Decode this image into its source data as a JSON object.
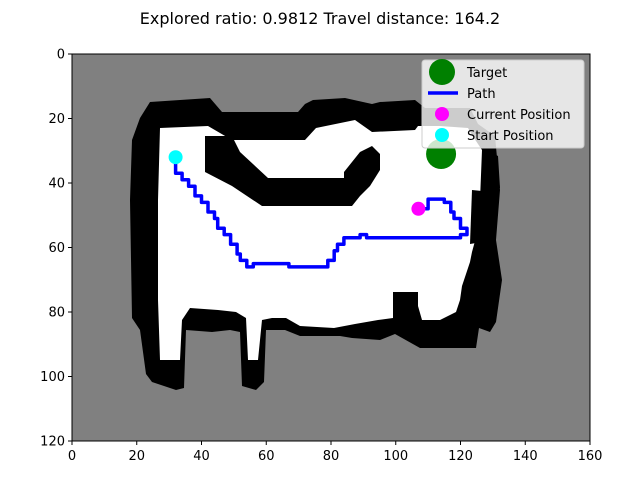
{
  "chart_data": {
    "type": "map",
    "title": "Explored ratio: 0.9812  Travel distance: 164.2",
    "xlim": [
      0,
      160
    ],
    "ylim": [
      120,
      0
    ],
    "y_inverted": true,
    "x_ticks": [
      0,
      20,
      40,
      60,
      80,
      100,
      120,
      140,
      160
    ],
    "y_ticks": [
      0,
      20,
      40,
      60,
      80,
      100,
      120
    ],
    "grid": false,
    "legend_position": "top-right",
    "legend": [
      {
        "label": "Target",
        "marker": "circle",
        "color": "#008000"
      },
      {
        "label": "Path",
        "marker": "line",
        "color": "#0000ff"
      },
      {
        "label": "Current Position",
        "marker": "circle",
        "color": "#ff00ff"
      },
      {
        "label": "Start Position",
        "marker": "circle",
        "color": "#00ffff"
      }
    ],
    "colors": {
      "unknown": "#808080",
      "obstacle": "#000000",
      "free": "#ffffff"
    },
    "target": {
      "x": 114,
      "y": 31
    },
    "current_position": {
      "x": 107,
      "y": 48
    },
    "start_position": {
      "x": 32,
      "y": 32
    },
    "path": [
      [
        32,
        32
      ],
      [
        32,
        37
      ],
      [
        34,
        37
      ],
      [
        34,
        39
      ],
      [
        36,
        39
      ],
      [
        36,
        41
      ],
      [
        38,
        41
      ],
      [
        38,
        44
      ],
      [
        40,
        44
      ],
      [
        40,
        46
      ],
      [
        42,
        46
      ],
      [
        42,
        49
      ],
      [
        44,
        49
      ],
      [
        44,
        51
      ],
      [
        45,
        51
      ],
      [
        45,
        54
      ],
      [
        47,
        54
      ],
      [
        47,
        56
      ],
      [
        49,
        56
      ],
      [
        49,
        59
      ],
      [
        51,
        59
      ],
      [
        51,
        62
      ],
      [
        52,
        62
      ],
      [
        52,
        64
      ],
      [
        54,
        64
      ],
      [
        54,
        66
      ],
      [
        56,
        66
      ],
      [
        56,
        65
      ],
      [
        67,
        65
      ],
      [
        67,
        66
      ],
      [
        79,
        66
      ],
      [
        79,
        64
      ],
      [
        81,
        64
      ],
      [
        81,
        61
      ],
      [
        82,
        61
      ],
      [
        82,
        59
      ],
      [
        84,
        59
      ],
      [
        84,
        57
      ],
      [
        89,
        57
      ],
      [
        89,
        56
      ],
      [
        91,
        56
      ],
      [
        91,
        57
      ],
      [
        120,
        57
      ],
      [
        120,
        56
      ],
      [
        122,
        56
      ],
      [
        122,
        54
      ],
      [
        120,
        54
      ],
      [
        120,
        51
      ],
      [
        118,
        51
      ],
      [
        118,
        49
      ],
      [
        117,
        49
      ],
      [
        117,
        46
      ],
      [
        115,
        46
      ],
      [
        115,
        45
      ],
      [
        110,
        45
      ],
      [
        110,
        48
      ],
      [
        107,
        48
      ]
    ]
  }
}
